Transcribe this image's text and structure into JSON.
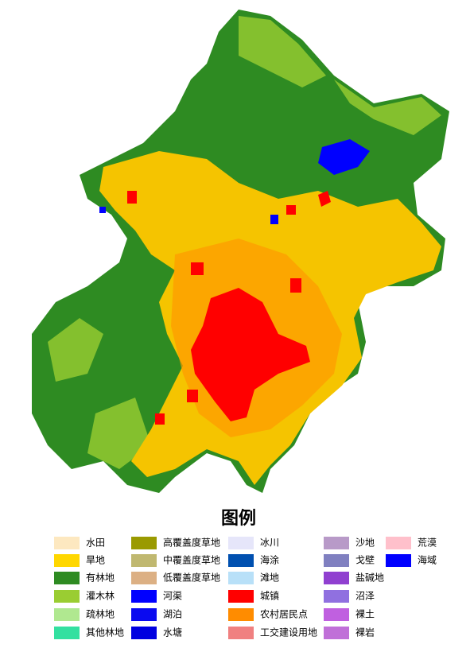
{
  "legend": {
    "title": "图例",
    "items": [
      {
        "label": "水田",
        "color": "#fde8c0"
      },
      {
        "label": "旱地",
        "color": "#ffd700"
      },
      {
        "label": "有林地",
        "color": "#2e8b22"
      },
      {
        "label": "灌木林",
        "color": "#9acd32"
      },
      {
        "label": "疏林地",
        "color": "#b0e890"
      },
      {
        "label": "其他林地",
        "color": "#33e0a0"
      },
      {
        "label": "高覆盖度草地",
        "color": "#9a9a00"
      },
      {
        "label": "中覆盖度草地",
        "color": "#c0b870"
      },
      {
        "label": "低覆盖度草地",
        "color": "#dcb084"
      },
      {
        "label": "河渠",
        "color": "#0000ff"
      },
      {
        "label": "湖泊",
        "color": "#0a0af0"
      },
      {
        "label": "水塘",
        "color": "#0000e0"
      },
      {
        "label": "冰川",
        "color": "#e6e6fa"
      },
      {
        "label": "海涂",
        "color": "#0050b0"
      },
      {
        "label": "滩地",
        "color": "#b8e0f8"
      },
      {
        "label": "城镇",
        "color": "#ff0000"
      },
      {
        "label": "农村居民点",
        "color": "#ff8c00"
      },
      {
        "label": "工交建设用地",
        "color": "#f08080"
      },
      {
        "label": "沙地",
        "color": "#b89ac8"
      },
      {
        "label": "戈壁",
        "color": "#8080c0"
      },
      {
        "label": "盐碱地",
        "color": "#9040d0"
      },
      {
        "label": "沼泽",
        "color": "#9070e0"
      },
      {
        "label": "裸土",
        "color": "#c060e0"
      },
      {
        "label": "裸岩",
        "color": "#c070d8"
      },
      {
        "label": "荒漠",
        "color": "#ffc0cb"
      },
      {
        "label": "海域",
        "color": "#0000ff"
      }
    ]
  }
}
